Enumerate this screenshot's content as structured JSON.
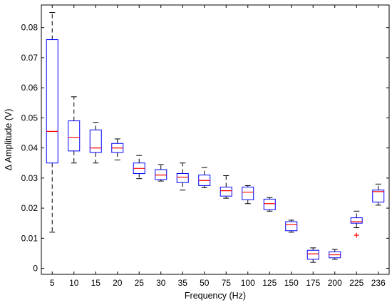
{
  "chart_data": {
    "type": "box",
    "xlabel": "Frequency (Hz)",
    "ylabel": "Δ Amplitude (V)",
    "ylim": [
      -0.002,
      0.0875
    ],
    "yticks": [
      0,
      0.01,
      0.02,
      0.03,
      0.04,
      0.05,
      0.06,
      0.07,
      0.08
    ],
    "ytick_labels": [
      "0",
      "0.01",
      "0.02",
      "0.03",
      "0.04",
      "0.05",
      "0.06",
      "0.07",
      "0.08"
    ],
    "categories": [
      "5",
      "10",
      "15",
      "20",
      "25",
      "30",
      "35",
      "50",
      "75",
      "100",
      "125",
      "150",
      "175",
      "200",
      "225",
      "236"
    ],
    "boxes": [
      {
        "min": 0.012,
        "q1": 0.035,
        "median": 0.0455,
        "q3": 0.076,
        "max": 0.085,
        "outliers": []
      },
      {
        "min": 0.035,
        "q1": 0.039,
        "median": 0.0435,
        "q3": 0.049,
        "max": 0.057,
        "outliers": []
      },
      {
        "min": 0.035,
        "q1": 0.0385,
        "median": 0.04,
        "q3": 0.046,
        "max": 0.0485,
        "outliers": []
      },
      {
        "min": 0.036,
        "q1": 0.0385,
        "median": 0.04,
        "q3": 0.0415,
        "max": 0.043,
        "outliers": []
      },
      {
        "min": 0.0298,
        "q1": 0.0315,
        "median": 0.0332,
        "q3": 0.035,
        "max": 0.0375,
        "outliers": []
      },
      {
        "min": 0.029,
        "q1": 0.0295,
        "median": 0.031,
        "q3": 0.0328,
        "max": 0.0345,
        "outliers": []
      },
      {
        "min": 0.026,
        "q1": 0.0285,
        "median": 0.0303,
        "q3": 0.0315,
        "max": 0.035,
        "outliers": []
      },
      {
        "min": 0.0268,
        "q1": 0.0275,
        "median": 0.0292,
        "q3": 0.031,
        "max": 0.0335,
        "outliers": []
      },
      {
        "min": 0.0233,
        "q1": 0.024,
        "median": 0.0258,
        "q3": 0.027,
        "max": 0.0308,
        "outliers": []
      },
      {
        "min": 0.0215,
        "q1": 0.0228,
        "median": 0.0253,
        "q3": 0.027,
        "max": 0.0275,
        "outliers": []
      },
      {
        "min": 0.019,
        "q1": 0.0195,
        "median": 0.0215,
        "q3": 0.023,
        "max": 0.0235,
        "outliers": []
      },
      {
        "min": 0.012,
        "q1": 0.0125,
        "median": 0.0145,
        "q3": 0.0155,
        "max": 0.016,
        "outliers": []
      },
      {
        "min": 0.002,
        "q1": 0.003,
        "median": 0.0048,
        "q3": 0.006,
        "max": 0.0068,
        "outliers": []
      },
      {
        "min": 0.003,
        "q1": 0.0035,
        "median": 0.0045,
        "q3": 0.0055,
        "max": 0.0063,
        "outliers": []
      },
      {
        "min": 0.0135,
        "q1": 0.015,
        "median": 0.0155,
        "q3": 0.0168,
        "max": 0.019,
        "outliers": [
          0.011
        ]
      },
      {
        "min": 0.021,
        "q1": 0.022,
        "median": 0.0255,
        "q3": 0.026,
        "max": 0.028,
        "outliers": []
      }
    ],
    "colors": {
      "box": "#0000ff",
      "median": "#ff0000",
      "whisker": "#000000",
      "outlier": "#ff0000",
      "axis": "#000000"
    },
    "grid": false
  }
}
